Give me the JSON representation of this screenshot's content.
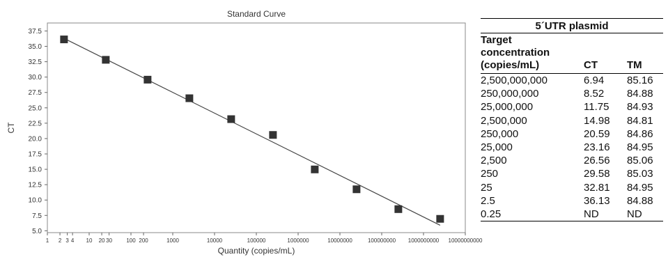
{
  "chart_data": {
    "type": "scatter",
    "title": "Standard Curve",
    "xlabel": "Quantity (copies/mL)",
    "ylabel": "CT",
    "xscale": "log",
    "xlim": [
      1,
      10000000000
    ],
    "ylim": [
      5.0,
      37.5
    ],
    "grid": false,
    "x_ticks": [
      {
        "value": 1,
        "label": "1"
      },
      {
        "value": 2,
        "label": "2"
      },
      {
        "value": 3,
        "label": "3"
      },
      {
        "value": 4,
        "label": "4"
      },
      {
        "value": 10,
        "label": "10"
      },
      {
        "value": 20,
        "label": "20"
      },
      {
        "value": 30,
        "label": "30"
      },
      {
        "value": 100,
        "label": "100"
      },
      {
        "value": 200,
        "label": "200"
      },
      {
        "value": 1000,
        "label": "1000"
      },
      {
        "value": 10000,
        "label": "10000"
      },
      {
        "value": 100000,
        "label": "100000"
      },
      {
        "value": 1000000,
        "label": "1000000"
      },
      {
        "value": 10000000,
        "label": "10000000"
      },
      {
        "value": 100000000,
        "label": "100000000"
      },
      {
        "value": 1000000000,
        "label": "1000000000"
      },
      {
        "value": 10000000000,
        "label": "10000000000"
      }
    ],
    "y_ticks": [
      "5.0",
      "7.5",
      "10.0",
      "12.5",
      "15.0",
      "17.5",
      "20.0",
      "22.5",
      "25.0",
      "27.5",
      "30.0",
      "32.5",
      "35.0",
      "37.5"
    ],
    "points": [
      {
        "x": 2.5,
        "y": 36.13
      },
      {
        "x": 25,
        "y": 32.81
      },
      {
        "x": 250,
        "y": 29.58
      },
      {
        "x": 2500,
        "y": 26.56
      },
      {
        "x": 25000,
        "y": 23.16
      },
      {
        "x": 250000,
        "y": 20.59
      },
      {
        "x": 2500000,
        "y": 14.98
      },
      {
        "x": 25000000,
        "y": 11.75
      },
      {
        "x": 250000000,
        "y": 8.52
      },
      {
        "x": 2500000000,
        "y": 6.94
      }
    ],
    "fit_line": [
      {
        "x": 2.5,
        "y": 36.3
      },
      {
        "x": 2500000000,
        "y": 5.9
      }
    ],
    "marker_color": "#333333",
    "line_color": "#444444"
  },
  "table": {
    "title": "5´UTR plasmid",
    "headers": [
      [
        "Target",
        "concentration",
        "(copies/mL)"
      ],
      "CT",
      "TM"
    ],
    "rows": [
      [
        "2,500,000,000",
        "6.94",
        "85.16"
      ],
      [
        "250,000,000",
        "8.52",
        "84.88"
      ],
      [
        "25,000,000",
        "11.75",
        "84.93"
      ],
      [
        "2,500,000",
        "14.98",
        "84.81"
      ],
      [
        "250,000",
        "20.59",
        "84.86"
      ],
      [
        "25,000",
        "23.16",
        "84.95"
      ],
      [
        "2,500",
        "26.56",
        "85.06"
      ],
      [
        "250",
        "29.58",
        "85.03"
      ],
      [
        "25",
        "32.81",
        "84.95"
      ],
      [
        "2.5",
        "36.13",
        "84.88"
      ],
      [
        "0.25",
        "ND",
        "ND"
      ]
    ]
  }
}
